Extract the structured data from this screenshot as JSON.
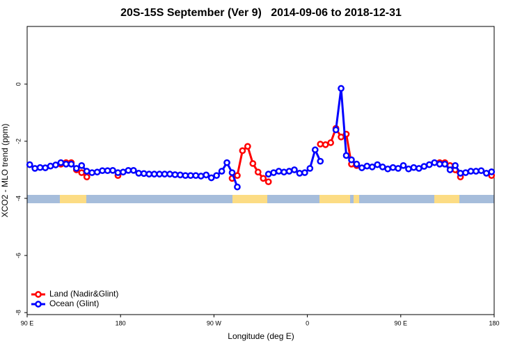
{
  "chart_data": {
    "type": "line",
    "title": "20S-15S September (Ver 9)   2014-09-06 to 2018-12-31",
    "xlabel": "Longitude (deg E)",
    "ylabel": "XCO2 - MLO trend (ppm)",
    "xlim": [
      90,
      540
    ],
    "xticks": [
      {
        "value": 90,
        "label": "90 E"
      },
      180,
      {
        "value": 270,
        "label": "90 W"
      },
      {
        "value": 360,
        "label": "0"
      },
      {
        "value": 450,
        "label": "90 E"
      },
      {
        "value": 540,
        "label": "180"
      }
    ],
    "ylim": [
      -8.07,
      2.02
    ],
    "yticks": [
      0,
      -2,
      -4,
      -6,
      -8
    ],
    "legend": "bottom-left",
    "x": [
      92.5,
      97.5,
      102.5,
      107.5,
      112.5,
      117.5,
      122.5,
      127.5,
      132.5,
      137.5,
      142.5,
      147.5,
      152.5,
      157.5,
      162.5,
      167.5,
      172.5,
      177.5,
      182.5,
      187.5,
      192.5,
      197.5,
      202.5,
      207.5,
      212.5,
      217.5,
      222.5,
      227.5,
      232.5,
      237.5,
      242.5,
      247.5,
      252.5,
      257.5,
      262.5,
      267.5,
      272.5,
      277.5,
      282.5,
      287.5,
      292.5,
      297.5,
      302.5,
      307.5,
      312.5,
      317.5,
      322.5,
      327.5,
      332.5,
      337.5,
      342.5,
      347.5,
      352.5,
      357.5,
      362.5,
      367.5,
      372.5,
      377.5,
      382.5,
      387.5,
      392.5,
      397.5,
      402.5,
      407.5,
      412.5,
      417.5,
      422.5,
      427.5,
      432.5,
      437.5,
      442.5,
      447.5,
      452.5,
      457.5,
      462.5,
      467.5,
      472.5,
      477.5,
      482.5,
      487.5,
      492.5,
      497.5,
      502.5,
      507.5,
      512.5,
      517.5,
      522.5,
      527.5,
      532.5,
      537.5
    ],
    "series": [
      {
        "name": "Land (Nadir&Glint)",
        "color": "#ff0000",
        "values": [
          null,
          null,
          null,
          null,
          null,
          null,
          -2.8,
          -2.75,
          -2.75,
          -3.0,
          -3.1,
          -3.25,
          null,
          null,
          null,
          null,
          null,
          -3.2,
          null,
          null,
          null,
          null,
          null,
          null,
          null,
          null,
          null,
          null,
          null,
          null,
          null,
          null,
          null,
          null,
          null,
          null,
          null,
          null,
          null,
          -3.3,
          -3.2,
          -2.33,
          -2.18,
          -2.78,
          -3.08,
          -3.3,
          -3.42,
          null,
          null,
          null,
          null,
          null,
          null,
          null,
          null,
          null,
          -2.1,
          -2.12,
          -2.05,
          -1.55,
          -1.85,
          -1.75,
          -2.8,
          -2.85,
          null,
          null,
          null,
          null,
          null,
          null,
          null,
          null,
          null,
          null,
          null,
          null,
          null,
          null,
          null,
          -2.75,
          -2.75,
          -2.85,
          -3.0,
          -3.25,
          null,
          null,
          null,
          null,
          null,
          -3.2
        ]
      },
      {
        "name": "Ocean (Glint)",
        "color": "#0000ff",
        "values": [
          -2.82,
          -2.95,
          -2.92,
          -2.93,
          -2.87,
          -2.83,
          -2.75,
          -2.8,
          -2.8,
          -2.95,
          -2.85,
          -3.05,
          -3.1,
          -3.08,
          -3.03,
          -3.03,
          -3.02,
          -3.1,
          -3.08,
          -3.02,
          -3.02,
          -3.12,
          -3.13,
          -3.15,
          -3.15,
          -3.15,
          -3.15,
          -3.15,
          -3.17,
          -3.18,
          -3.2,
          -3.2,
          -3.2,
          -3.22,
          -3.18,
          -3.28,
          -3.2,
          -3.05,
          -2.75,
          -3.1,
          -3.6,
          null,
          null,
          null,
          null,
          null,
          -3.15,
          -3.1,
          -3.05,
          -3.08,
          -3.05,
          -3.0,
          -3.12,
          -3.1,
          -2.95,
          -2.3,
          -2.7,
          null,
          null,
          -1.6,
          -0.15,
          -2.5,
          -2.65,
          -2.8,
          -2.93,
          -2.87,
          -2.9,
          -2.82,
          -2.9,
          -2.97,
          -2.92,
          -2.95,
          -2.85,
          -2.97,
          -2.92,
          -2.95,
          -2.88,
          -2.82,
          -2.75,
          -2.8,
          -2.8,
          -3.0,
          -2.85,
          -3.12,
          -3.1,
          -3.05,
          -3.05,
          -3.03,
          -3.12,
          -3.07
        ]
      }
    ]
  }
}
